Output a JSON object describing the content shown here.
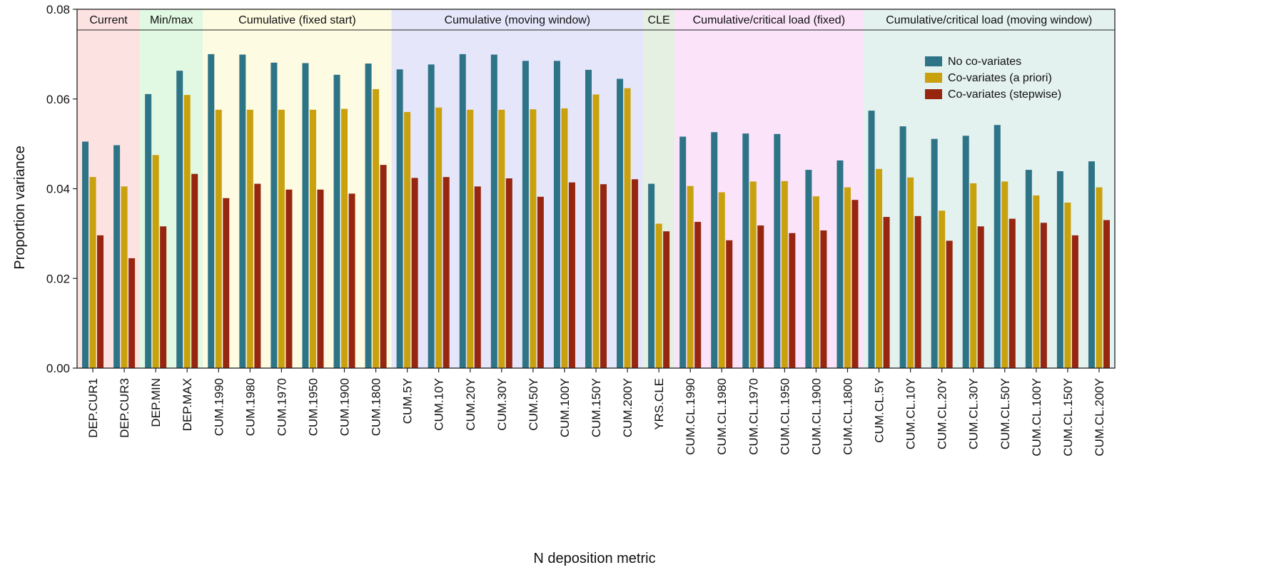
{
  "chart_data": {
    "type": "bar",
    "xlabel": "N deposition metric",
    "ylabel": "Proportion variance",
    "ylim": [
      0,
      0.08
    ],
    "yticks": [
      "0.00",
      "0.02",
      "0.04",
      "0.06",
      "0.08"
    ],
    "ytick_values": [
      0,
      0.02,
      0.04,
      0.06,
      0.08
    ],
    "grid": false,
    "legend_position": "top-right",
    "categories": [
      "DEP.CUR1",
      "DEP.CUR3",
      "DEP.MIN",
      "DEP.MAX",
      "CUM.1990",
      "CUM.1980",
      "CUM.1970",
      "CUM.1950",
      "CUM.1900",
      "CUM.1800",
      "CUM.5Y",
      "CUM.10Y",
      "CUM.20Y",
      "CUM.30Y",
      "CUM.50Y",
      "CUM.100Y",
      "CUM.150Y",
      "CUM.200Y",
      "YRS.CLE",
      "CUM.CL.1990",
      "CUM.CL.1980",
      "CUM.CL.1970",
      "CUM.CL.1950",
      "CUM.CL.1900",
      "CUM.CL.1800",
      "CUM.CL.5Y",
      "CUM.CL.10Y",
      "CUM.CL.20Y",
      "CUM.CL.30Y",
      "CUM.CL.50Y",
      "CUM.CL.100Y",
      "CUM.CL.150Y",
      "CUM.CL.200Y"
    ],
    "series": [
      {
        "name": "No co-variates",
        "color": "#2e7487",
        "values": [
          0.0505,
          0.0497,
          0.0611,
          0.0663,
          0.07,
          0.0699,
          0.0681,
          0.068,
          0.0654,
          0.0679,
          0.0666,
          0.0677,
          0.07,
          0.0699,
          0.0685,
          0.0685,
          0.0665,
          0.0645,
          0.0411,
          0.0516,
          0.0526,
          0.0523,
          0.0522,
          0.0442,
          0.0463,
          0.0574,
          0.0539,
          0.0511,
          0.0518,
          0.0542,
          0.0442,
          0.0439,
          0.0461
        ]
      },
      {
        "name": "Co-variates (a priori)",
        "color": "#c9a10e",
        "values": [
          0.0426,
          0.0405,
          0.0475,
          0.0609,
          0.0576,
          0.0576,
          0.0576,
          0.0576,
          0.0578,
          0.0622,
          0.0571,
          0.0581,
          0.0576,
          0.0576,
          0.0577,
          0.0579,
          0.061,
          0.0624,
          0.0322,
          0.0406,
          0.0392,
          0.0416,
          0.0417,
          0.0383,
          0.0403,
          0.0444,
          0.0425,
          0.0351,
          0.0412,
          0.0416,
          0.0385,
          0.0369,
          0.0403
        ]
      },
      {
        "name": "Co-variates (stepwise)",
        "color": "#96260f",
        "values": [
          0.0296,
          0.0245,
          0.0316,
          0.0433,
          0.0379,
          0.0411,
          0.0398,
          0.0398,
          0.0389,
          0.0453,
          0.0424,
          0.0426,
          0.0405,
          0.0423,
          0.0382,
          0.0414,
          0.041,
          0.0421,
          0.0305,
          0.0326,
          0.0285,
          0.0318,
          0.0301,
          0.0307,
          0.0375,
          0.0337,
          0.0339,
          0.0284,
          0.0316,
          0.0333,
          0.0324,
          0.0296,
          0.033
        ]
      }
    ],
    "groups": [
      {
        "label": "Current",
        "start": 0,
        "end": 1,
        "color": "#fde2e2"
      },
      {
        "label": "Min/max",
        "start": 2,
        "end": 3,
        "color": "#e1f9e3"
      },
      {
        "label": "Cumulative (fixed start)",
        "start": 4,
        "end": 9,
        "color": "#fdfbe2"
      },
      {
        "label": "Cumulative (moving window)",
        "start": 10,
        "end": 17,
        "color": "#e6e6fb"
      },
      {
        "label": "CLE",
        "start": 18,
        "end": 18,
        "color": "#e5f0e2"
      },
      {
        "label": "Cumulative/critical load (fixed)",
        "start": 19,
        "end": 24,
        "color": "#fbe3fa"
      },
      {
        "label": "Cumulative/critical load (moving window)",
        "start": 25,
        "end": 32,
        "color": "#e3f1ef"
      }
    ]
  }
}
